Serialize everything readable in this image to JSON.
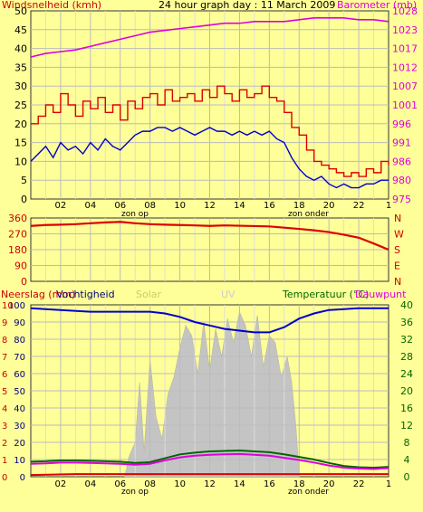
{
  "chart_data": [
    {
      "type": "line",
      "title": "24 hour graph day : 11 March 2009",
      "ylabel": "Windsnelheid (kmh)",
      "ylabel_right": "Barometer (mb)",
      "ylim": [
        0,
        50
      ],
      "ylim_right": [
        975,
        1028
      ],
      "yticks": [
        "0",
        "5",
        "10",
        "15",
        "20",
        "25",
        "30",
        "35",
        "40",
        "45",
        "50"
      ],
      "yticks_right": [
        "975",
        "980",
        "986",
        "991",
        "996",
        "1001",
        "1007",
        "1012",
        "1017",
        "1023",
        "1028"
      ],
      "xticks": [
        "02",
        "04",
        "06",
        "08",
        "10",
        "12",
        "14",
        "16",
        "18",
        "20",
        "22",
        "1"
      ],
      "xlim_hours": [
        0,
        24
      ],
      "annotations": [
        "zon op",
        "zon onder"
      ],
      "grid": true,
      "series": [
        {
          "name": "Windsnelheid",
          "axis": "left",
          "color": "#DD0000",
          "step": true,
          "x": [
            0,
            0.5,
            1,
            1.5,
            2,
            2.5,
            3,
            3.5,
            4,
            4.5,
            5,
            5.5,
            6,
            6.5,
            7,
            7.5,
            8,
            8.5,
            9,
            9.5,
            10,
            10.5,
            11,
            11.5,
            12,
            12.5,
            13,
            13.5,
            14,
            14.5,
            15,
            15.5,
            16,
            16.5,
            17,
            17.5,
            18,
            18.5,
            19,
            19.5,
            20,
            20.5,
            21,
            21.5,
            22,
            22.5,
            23,
            23.5,
            24
          ],
          "y": [
            20,
            22,
            25,
            23,
            28,
            25,
            22,
            26,
            24,
            27,
            23,
            25,
            21,
            26,
            24,
            27,
            28,
            25,
            29,
            26,
            27,
            28,
            26,
            29,
            27,
            30,
            28,
            26,
            29,
            27,
            28,
            30,
            27,
            26,
            23,
            19,
            17,
            13,
            10,
            9,
            8,
            7,
            6,
            7,
            6,
            8,
            7,
            10,
            9
          ]
        },
        {
          "name": "Barometer",
          "axis": "right",
          "color": "#DD00DD",
          "x": [
            0,
            1,
            2,
            3,
            4,
            5,
            6,
            7,
            8,
            9,
            10,
            11,
            12,
            13,
            14,
            15,
            16,
            17,
            18,
            19,
            20,
            21,
            22,
            23,
            24
          ],
          "y": [
            1015,
            1016,
            1016.5,
            1017,
            1018,
            1019,
            1020,
            1021,
            1022,
            1022.5,
            1023,
            1023.5,
            1024,
            1024.5,
            1024.5,
            1025,
            1025,
            1025,
            1025.5,
            1026,
            1026,
            1026,
            1025.5,
            1025.5,
            1025
          ]
        },
        {
          "name": "Windstoten",
          "axis": "left",
          "color": "#0000CC",
          "x": [
            0,
            0.5,
            1,
            1.5,
            2,
            2.5,
            3,
            3.5,
            4,
            4.5,
            5,
            5.5,
            6,
            6.5,
            7,
            7.5,
            8,
            8.5,
            9,
            9.5,
            10,
            10.5,
            11,
            11.5,
            12,
            12.5,
            13,
            13.5,
            14,
            14.5,
            15,
            15.5,
            16,
            16.5,
            17,
            17.5,
            18,
            18.5,
            19,
            19.5,
            20,
            20.5,
            21,
            21.5,
            22,
            22.5,
            23,
            23.5,
            24
          ],
          "y": [
            10,
            12,
            14,
            11,
            15,
            13,
            14,
            12,
            15,
            13,
            16,
            14,
            13,
            15,
            17,
            18,
            18,
            19,
            19,
            18,
            19,
            18,
            17,
            18,
            19,
            18,
            18,
            17,
            18,
            17,
            18,
            17,
            18,
            16,
            15,
            11,
            8,
            6,
            5,
            6,
            4,
            3,
            4,
            3,
            3,
            4,
            4,
            5,
            5
          ]
        }
      ]
    },
    {
      "type": "line",
      "title": "",
      "ylim": [
        0,
        360
      ],
      "yticks": [
        "0",
        "90",
        "180",
        "270",
        "360"
      ],
      "yticks_right": [
        "N",
        "E",
        "S",
        "W",
        "N"
      ],
      "xlim_hours": [
        0,
        24
      ],
      "grid": true,
      "series": [
        {
          "name": "Windrichting",
          "color": "#DD0000",
          "x": [
            0,
            1,
            2,
            3,
            4,
            5,
            6,
            7,
            8,
            9,
            10,
            11,
            12,
            13,
            14,
            15,
            16,
            17,
            18,
            19,
            20,
            21,
            22,
            23,
            24
          ],
          "y": [
            315,
            320,
            322,
            325,
            330,
            335,
            338,
            330,
            325,
            322,
            320,
            318,
            315,
            318,
            316,
            314,
            312,
            305,
            298,
            290,
            280,
            265,
            248,
            215,
            180
          ]
        }
      ]
    },
    {
      "type": "area",
      "ylabel": "Neerslag (mm)",
      "legend": [
        "Vochtigheid",
        "Solar",
        "UV",
        "Temperatuur (°C)",
        "Dauwpunt"
      ],
      "legend_colors": [
        "#000080",
        "#CCCC66",
        "#CCCCCC",
        "#006600",
        "#DD00DD"
      ],
      "ylim_rain": [
        0,
        10
      ],
      "yticks_rain": [
        "0",
        "1",
        "2",
        "3",
        "4",
        "5",
        "6",
        "7",
        "8",
        "9",
        "10"
      ],
      "yticks_hum": [
        "0",
        "10",
        "20",
        "30",
        "40",
        "50",
        "60",
        "70",
        "80",
        "90",
        "100"
      ],
      "ylim_temp": [
        0,
        40
      ],
      "yticks_temp": [
        "0",
        "4",
        "8",
        "12",
        "16",
        "20",
        "24",
        "28",
        "32",
        "36",
        "40"
      ],
      "xticks": [
        "02",
        "04",
        "06",
        "08",
        "10",
        "12",
        "14",
        "16",
        "18",
        "20",
        "22",
        "1"
      ],
      "xlim_hours": [
        0,
        24
      ],
      "annotations": [
        "zon op",
        "zon onder"
      ],
      "grid": true,
      "series": [
        {
          "name": "Vochtigheid",
          "axis": "hum",
          "color": "#0000CC",
          "x": [
            0,
            2,
            4,
            6,
            7,
            8,
            9,
            10,
            11,
            12,
            13,
            14,
            15,
            16,
            17,
            18,
            19,
            20,
            22,
            24
          ],
          "y": [
            98,
            97,
            96,
            96,
            96,
            96,
            95,
            93,
            90,
            88,
            86,
            85,
            84,
            84,
            87,
            92,
            95,
            97,
            98,
            98
          ]
        },
        {
          "name": "Temperatuur",
          "axis": "temp",
          "color": "#006600",
          "x": [
            0,
            1,
            2,
            3,
            4,
            5,
            6,
            7,
            8,
            9,
            10,
            11,
            12,
            13,
            14,
            15,
            16,
            17,
            18,
            19,
            20,
            21,
            22,
            23,
            24
          ],
          "y": [
            3.5,
            3.6,
            3.8,
            3.8,
            3.7,
            3.6,
            3.5,
            3.2,
            3.4,
            4.3,
            5.2,
            5.6,
            5.9,
            6,
            6.1,
            5.9,
            5.7,
            5.2,
            4.6,
            4,
            3.2,
            2.5,
            2.2,
            2.1,
            2.3
          ]
        },
        {
          "name": "Dauwpunt",
          "axis": "temp",
          "color": "#DD00DD",
          "x": [
            0,
            1,
            2,
            3,
            4,
            5,
            6,
            7,
            8,
            9,
            10,
            11,
            12,
            13,
            14,
            15,
            16,
            17,
            18,
            19,
            20,
            21,
            22,
            23,
            24
          ],
          "y": [
            3.0,
            3.1,
            3.3,
            3.3,
            3.2,
            3.1,
            3.0,
            2.8,
            3.0,
            3.8,
            4.5,
            4.9,
            5.1,
            5.2,
            5.3,
            5.1,
            4.9,
            4.4,
            3.9,
            3.3,
            2.6,
            2.1,
            1.9,
            1.8,
            2.0
          ]
        },
        {
          "name": "Neerslag",
          "axis": "rain",
          "color": "#DD0000",
          "x": [
            0,
            3,
            6,
            9,
            12,
            15,
            18,
            21,
            24
          ],
          "y": [
            0.1,
            0.15,
            0.15,
            0.15,
            0.15,
            0.15,
            0.15,
            0.15,
            0.15
          ]
        }
      ],
      "solar": {
        "x": [
          6.3,
          6.6,
          7,
          7.3,
          7.6,
          8,
          8.4,
          8.8,
          9.2,
          9.6,
          10,
          10.4,
          10.8,
          11.2,
          11.6,
          12,
          12.4,
          12.8,
          13.2,
          13.6,
          14,
          14.4,
          14.8,
          15.2,
          15.6,
          16,
          16.4,
          16.8,
          17.2,
          17.5,
          17.8,
          18
        ],
        "y": [
          0,
          12,
          20,
          55,
          15,
          68,
          35,
          22,
          48,
          58,
          75,
          88,
          82,
          60,
          90,
          62,
          86,
          70,
          92,
          78,
          96,
          88,
          70,
          94,
          64,
          82,
          78,
          58,
          70,
          55,
          28,
          0
        ]
      }
    }
  ]
}
